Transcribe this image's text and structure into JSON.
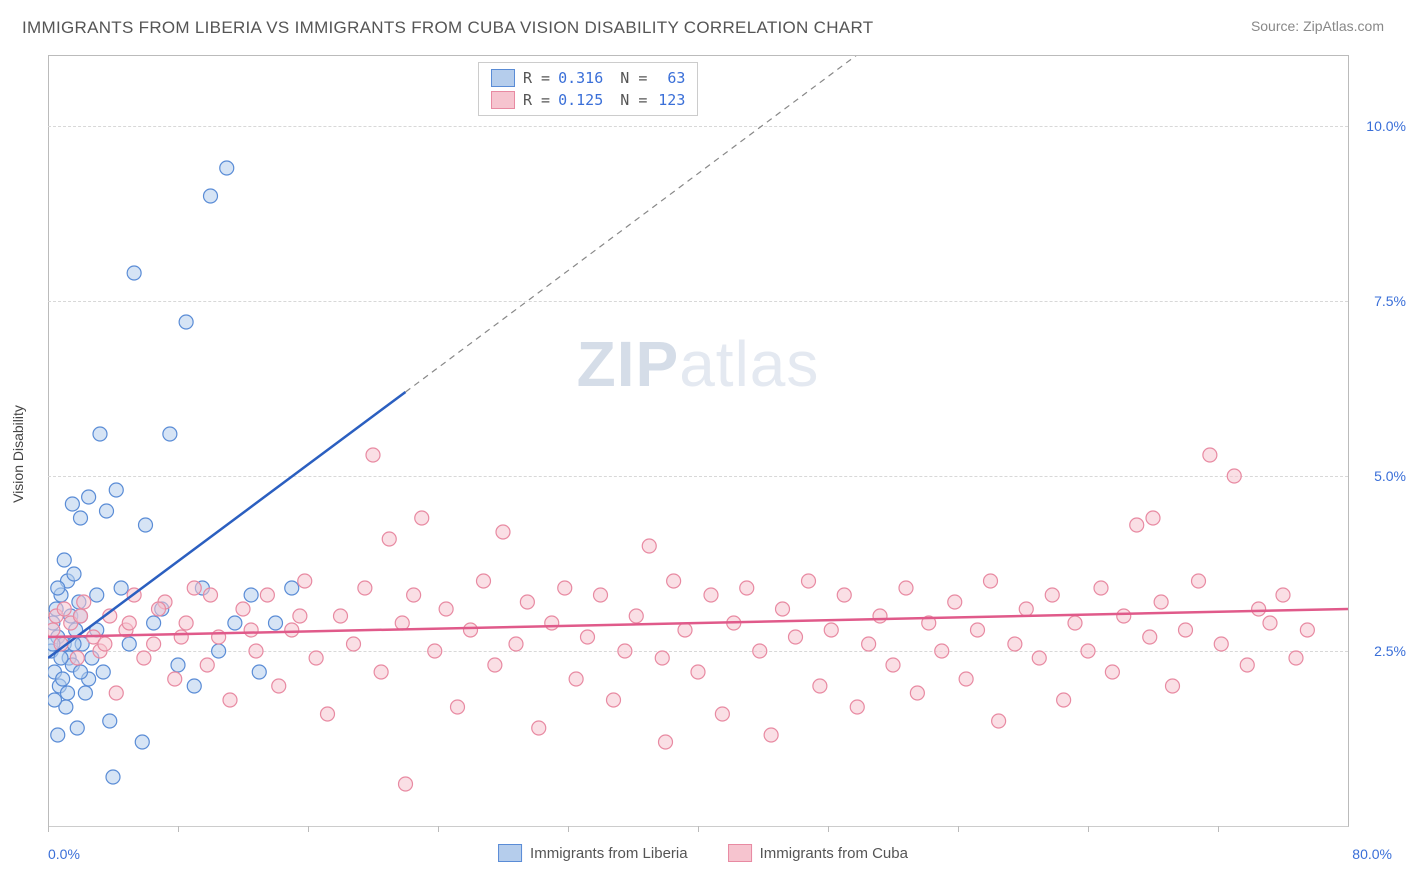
{
  "header": {
    "title": "IMMIGRANTS FROM LIBERIA VS IMMIGRANTS FROM CUBA VISION DISABILITY CORRELATION CHART",
    "source_label": "Source:",
    "source_name": "ZipAtlas.com"
  },
  "watermark": {
    "prefix": "ZIP",
    "suffix": "atlas"
  },
  "chart": {
    "type": "scatter",
    "y_axis_title": "Vision Disability",
    "xlim": [
      0,
      80
    ],
    "ylim": [
      0,
      11
    ],
    "x_ticks": [
      0,
      8,
      16,
      24,
      32,
      40,
      48,
      56,
      64,
      72
    ],
    "y_ticks": [
      2.5,
      5.0,
      7.5,
      10.0
    ],
    "y_tick_labels": [
      "2.5%",
      "5.0%",
      "7.5%",
      "10.0%"
    ],
    "x_start_label": "0.0%",
    "x_end_label": "80.0%",
    "background_color": "#ffffff",
    "grid_color": "#d8d8d8",
    "marker_radius": 7,
    "marker_opacity": 0.55,
    "series": [
      {
        "name": "Immigrants from Liberia",
        "color_fill": "#b5cdec",
        "color_stroke": "#5a8cd6",
        "R": "0.316",
        "N": "63",
        "trend": {
          "x1": 0,
          "y1": 2.4,
          "x2": 22,
          "y2": 6.2,
          "dash_to_x": 52,
          "dash_to_y": 11.4,
          "color": "#2b5fc0",
          "width": 2.5
        },
        "points": [
          [
            0.2,
            2.5
          ],
          [
            0.3,
            2.9
          ],
          [
            0.4,
            2.2
          ],
          [
            0.5,
            3.1
          ],
          [
            0.6,
            2.7
          ],
          [
            0.7,
            2.0
          ],
          [
            0.8,
            3.3
          ],
          [
            0.9,
            2.1
          ],
          [
            1.0,
            2.6
          ],
          [
            1.1,
            1.7
          ],
          [
            1.2,
            3.5
          ],
          [
            1.3,
            2.4
          ],
          [
            1.4,
            3.0
          ],
          [
            1.5,
            2.3
          ],
          [
            1.6,
            3.6
          ],
          [
            1.7,
            2.8
          ],
          [
            1.8,
            1.4
          ],
          [
            1.9,
            3.2
          ],
          [
            2.0,
            4.4
          ],
          [
            2.1,
            2.6
          ],
          [
            2.3,
            1.9
          ],
          [
            2.5,
            4.7
          ],
          [
            2.7,
            2.4
          ],
          [
            3.0,
            3.3
          ],
          [
            3.2,
            5.6
          ],
          [
            3.4,
            2.2
          ],
          [
            3.6,
            4.5
          ],
          [
            3.8,
            1.5
          ],
          [
            4.0,
            0.7
          ],
          [
            4.2,
            4.8
          ],
          [
            4.5,
            3.4
          ],
          [
            5.0,
            2.6
          ],
          [
            5.3,
            7.9
          ],
          [
            5.8,
            1.2
          ],
          [
            6.0,
            4.3
          ],
          [
            6.5,
            2.9
          ],
          [
            7.0,
            3.1
          ],
          [
            7.5,
            5.6
          ],
          [
            8.0,
            2.3
          ],
          [
            8.5,
            7.2
          ],
          [
            9.0,
            2.0
          ],
          [
            9.5,
            3.4
          ],
          [
            10.0,
            9.0
          ],
          [
            10.5,
            2.5
          ],
          [
            11.0,
            9.4
          ],
          [
            11.5,
            2.9
          ],
          [
            12.5,
            3.3
          ],
          [
            13.0,
            2.2
          ],
          [
            14.0,
            2.9
          ],
          [
            15.0,
            3.4
          ],
          [
            1.0,
            3.8
          ],
          [
            1.5,
            4.6
          ],
          [
            2.0,
            3.0
          ],
          [
            2.5,
            2.1
          ],
          [
            3.0,
            2.8
          ],
          [
            0.6,
            3.4
          ],
          [
            0.8,
            2.4
          ],
          [
            1.2,
            1.9
          ],
          [
            1.6,
            2.6
          ],
          [
            2.0,
            2.2
          ],
          [
            0.4,
            1.8
          ],
          [
            0.6,
            1.3
          ],
          [
            0.3,
            2.6
          ]
        ]
      },
      {
        "name": "Immigrants from Cuba",
        "color_fill": "#f6c4cf",
        "color_stroke": "#e88aa2",
        "R": "0.125",
        "N": "123",
        "trend": {
          "x1": 0,
          "y1": 2.7,
          "x2": 80,
          "y2": 3.1,
          "color": "#e05a8a",
          "width": 2.5
        },
        "points": [
          [
            0.3,
            2.8
          ],
          [
            0.5,
            3.0
          ],
          [
            0.8,
            2.6
          ],
          [
            1.0,
            3.1
          ],
          [
            1.4,
            2.9
          ],
          [
            1.8,
            2.4
          ],
          [
            2.2,
            3.2
          ],
          [
            2.8,
            2.7
          ],
          [
            3.2,
            2.5
          ],
          [
            3.8,
            3.0
          ],
          [
            4.2,
            1.9
          ],
          [
            4.8,
            2.8
          ],
          [
            5.3,
            3.3
          ],
          [
            5.9,
            2.4
          ],
          [
            6.5,
            2.6
          ],
          [
            7.2,
            3.2
          ],
          [
            7.8,
            2.1
          ],
          [
            8.5,
            2.9
          ],
          [
            9.0,
            3.4
          ],
          [
            9.8,
            2.3
          ],
          [
            10.5,
            2.7
          ],
          [
            11.2,
            1.8
          ],
          [
            12.0,
            3.1
          ],
          [
            12.8,
            2.5
          ],
          [
            13.5,
            3.3
          ],
          [
            14.2,
            2.0
          ],
          [
            15.0,
            2.8
          ],
          [
            15.8,
            3.5
          ],
          [
            16.5,
            2.4
          ],
          [
            17.2,
            1.6
          ],
          [
            18.0,
            3.0
          ],
          [
            18.8,
            2.6
          ],
          [
            19.5,
            3.4
          ],
          [
            20.0,
            5.3
          ],
          [
            20.5,
            2.2
          ],
          [
            21.0,
            4.1
          ],
          [
            21.8,
            2.9
          ],
          [
            22.0,
            0.6
          ],
          [
            22.5,
            3.3
          ],
          [
            23.0,
            4.4
          ],
          [
            23.8,
            2.5
          ],
          [
            24.5,
            3.1
          ],
          [
            25.2,
            1.7
          ],
          [
            26.0,
            2.8
          ],
          [
            26.8,
            3.5
          ],
          [
            27.5,
            2.3
          ],
          [
            28.0,
            4.2
          ],
          [
            28.8,
            2.6
          ],
          [
            29.5,
            3.2
          ],
          [
            30.2,
            1.4
          ],
          [
            31.0,
            2.9
          ],
          [
            31.8,
            3.4
          ],
          [
            32.5,
            2.1
          ],
          [
            33.2,
            2.7
          ],
          [
            34.0,
            3.3
          ],
          [
            34.8,
            1.8
          ],
          [
            35.5,
            2.5
          ],
          [
            36.2,
            3.0
          ],
          [
            37.0,
            4.0
          ],
          [
            37.8,
            2.4
          ],
          [
            38.0,
            1.2
          ],
          [
            38.5,
            3.5
          ],
          [
            39.2,
            2.8
          ],
          [
            40.0,
            2.2
          ],
          [
            40.8,
            3.3
          ],
          [
            41.5,
            1.6
          ],
          [
            42.2,
            2.9
          ],
          [
            43.0,
            3.4
          ],
          [
            43.8,
            2.5
          ],
          [
            44.5,
            1.3
          ],
          [
            45.2,
            3.1
          ],
          [
            46.0,
            2.7
          ],
          [
            46.8,
            3.5
          ],
          [
            47.5,
            2.0
          ],
          [
            48.2,
            2.8
          ],
          [
            49.0,
            3.3
          ],
          [
            49.8,
            1.7
          ],
          [
            50.5,
            2.6
          ],
          [
            51.2,
            3.0
          ],
          [
            52.0,
            2.3
          ],
          [
            52.8,
            3.4
          ],
          [
            53.5,
            1.9
          ],
          [
            54.2,
            2.9
          ],
          [
            55.0,
            2.5
          ],
          [
            55.8,
            3.2
          ],
          [
            56.5,
            2.1
          ],
          [
            57.2,
            2.8
          ],
          [
            58.0,
            3.5
          ],
          [
            58.5,
            1.5
          ],
          [
            59.5,
            2.6
          ],
          [
            60.2,
            3.1
          ],
          [
            61.0,
            2.4
          ],
          [
            61.8,
            3.3
          ],
          [
            62.5,
            1.8
          ],
          [
            63.2,
            2.9
          ],
          [
            64.0,
            2.5
          ],
          [
            64.8,
            3.4
          ],
          [
            65.5,
            2.2
          ],
          [
            66.2,
            3.0
          ],
          [
            67.0,
            4.3
          ],
          [
            67.8,
            2.7
          ],
          [
            68.0,
            4.4
          ],
          [
            68.5,
            3.2
          ],
          [
            69.2,
            2.0
          ],
          [
            70.0,
            2.8
          ],
          [
            70.8,
            3.5
          ],
          [
            71.5,
            5.3
          ],
          [
            72.2,
            2.6
          ],
          [
            73.0,
            5.0
          ],
          [
            73.8,
            2.3
          ],
          [
            74.5,
            3.1
          ],
          [
            75.2,
            2.9
          ],
          [
            76.0,
            3.3
          ],
          [
            76.8,
            2.4
          ],
          [
            77.5,
            2.8
          ],
          [
            2.0,
            3.0
          ],
          [
            3.5,
            2.6
          ],
          [
            5.0,
            2.9
          ],
          [
            6.8,
            3.1
          ],
          [
            8.2,
            2.7
          ],
          [
            10.0,
            3.3
          ],
          [
            12.5,
            2.8
          ],
          [
            15.5,
            3.0
          ]
        ]
      }
    ]
  },
  "bottom_legend": {
    "a": "Immigrants from Liberia",
    "b": "Immigrants from Cuba"
  }
}
